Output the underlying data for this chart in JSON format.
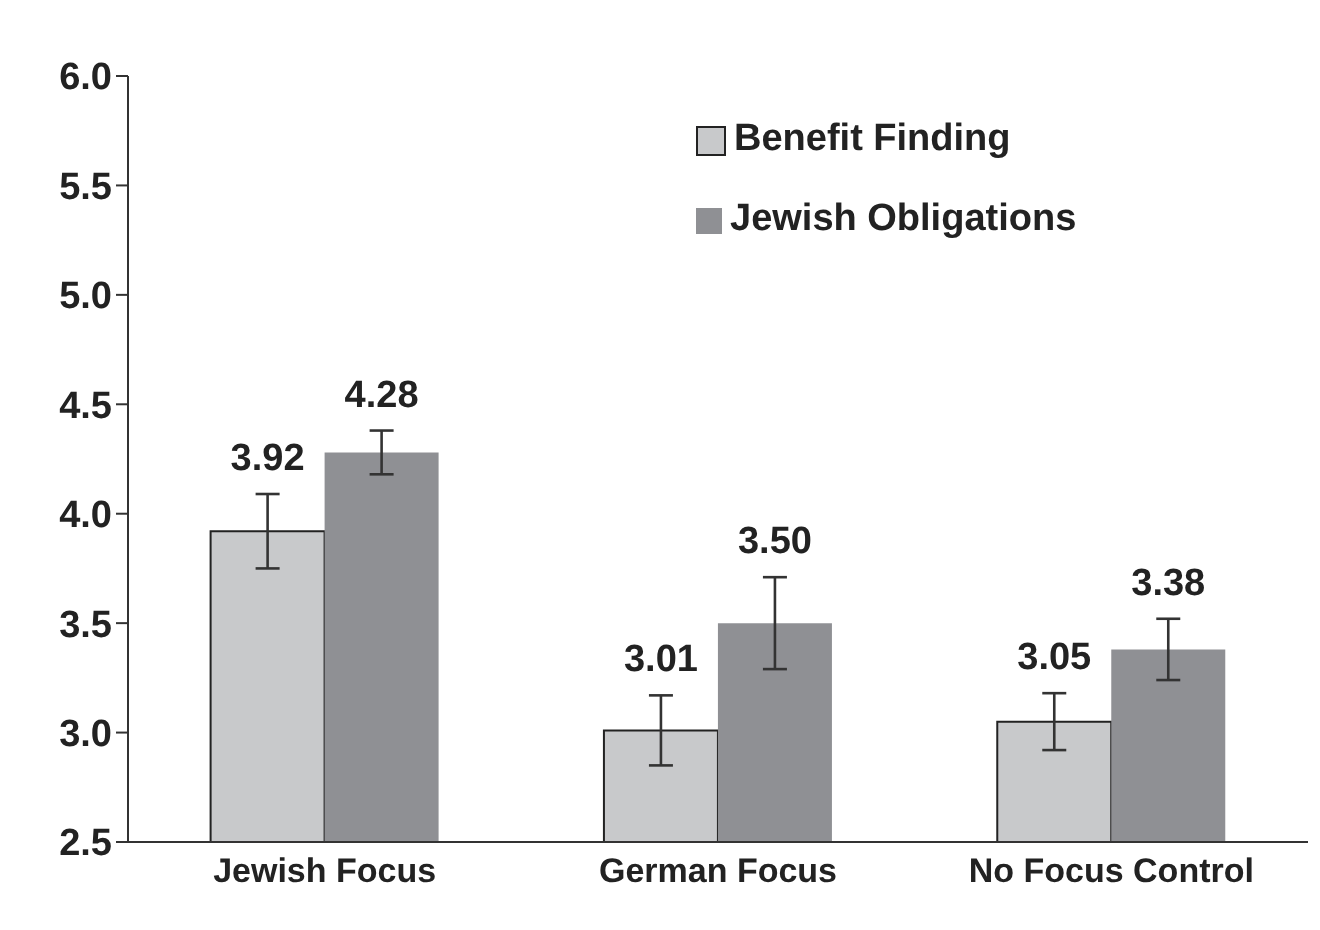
{
  "chart_data": {
    "type": "bar",
    "categories": [
      "Jewish Focus",
      "German Focus",
      "No Focus Control"
    ],
    "series": [
      {
        "name": "Benefit Finding",
        "color": "#c8c9cb",
        "values": [
          3.92,
          3.01,
          3.05
        ],
        "errors": [
          0.17,
          0.16,
          0.13
        ],
        "value_labels": [
          "3.92",
          "3.01",
          "3.05"
        ]
      },
      {
        "name": "Jewish Obligations",
        "color": "#8f9094",
        "values": [
          4.28,
          3.5,
          3.38
        ],
        "errors": [
          0.1,
          0.21,
          0.14
        ],
        "value_labels": [
          "4.28",
          "3.50",
          "3.38"
        ]
      }
    ],
    "ylim": [
      2.5,
      6.0
    ],
    "yticks": [
      {
        "value": 2.5,
        "label": "2.5"
      },
      {
        "value": 3,
        "label": "3.0"
      },
      {
        "value": 3.5,
        "label": "3.5"
      },
      {
        "value": 4,
        "label": "4.0"
      },
      {
        "value": 4.5,
        "label": "4.5"
      },
      {
        "value": 5,
        "label": "5.0"
      },
      {
        "value": 5.5,
        "label": "5.5"
      },
      {
        "value": 6,
        "label": "6.0"
      }
    ],
    "grid": false,
    "legend": "top right"
  }
}
